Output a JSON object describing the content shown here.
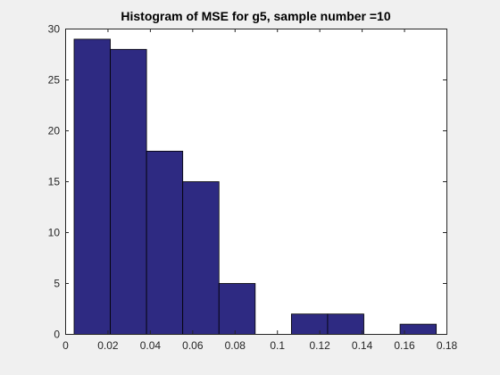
{
  "chart_data": {
    "type": "bar",
    "title": "Histogram of MSE for g5, sample number =10",
    "xlabel": "",
    "ylabel": "",
    "bin_edges": [
      0.004,
      0.0211,
      0.0382,
      0.0553,
      0.0724,
      0.0895,
      0.1066,
      0.1237,
      0.1408,
      0.1579,
      0.175
    ],
    "values": [
      29,
      28,
      18,
      15,
      5,
      0,
      2,
      2,
      0,
      1
    ],
    "xlim": [
      0,
      0.18
    ],
    "ylim": [
      0,
      30
    ],
    "xticks": [
      "0",
      "0.02",
      "0.04",
      "0.06",
      "0.08",
      "0.1",
      "0.12",
      "0.14",
      "0.16",
      "0.18"
    ],
    "yticks": [
      "0",
      "5",
      "10",
      "15",
      "20",
      "25",
      "30"
    ],
    "grid": false,
    "bar_color": "#2e2a82",
    "edge_color": "#000000",
    "background": "#ffffff"
  }
}
